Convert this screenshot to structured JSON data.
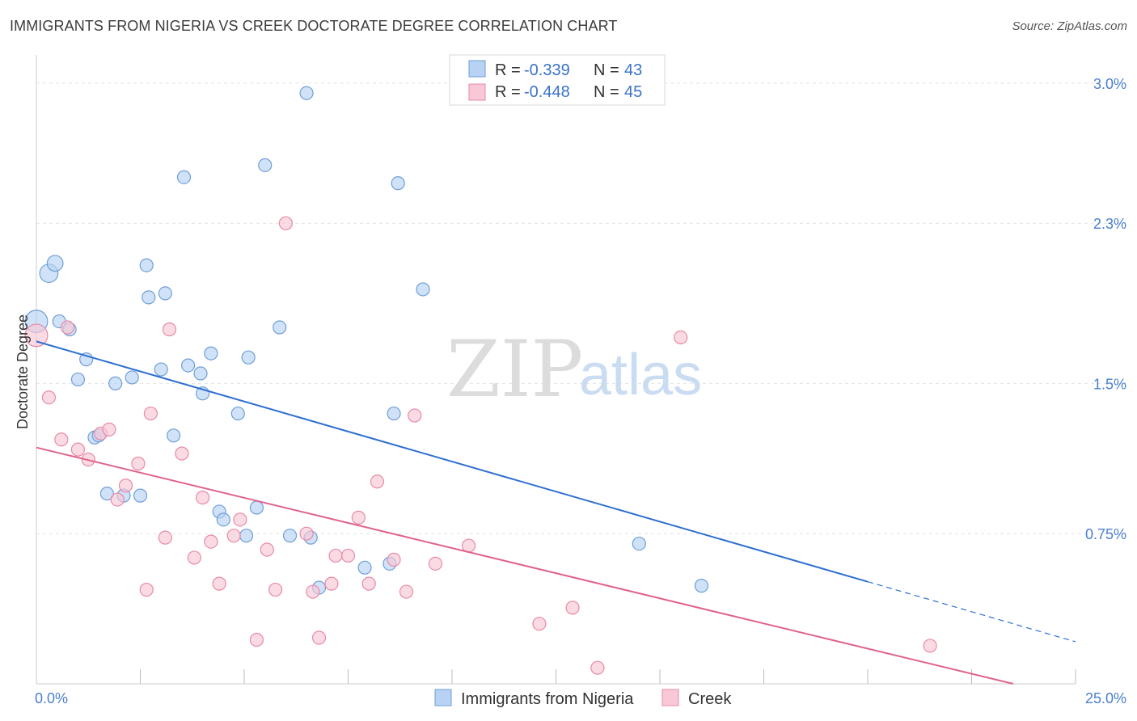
{
  "title": "IMMIGRANTS FROM NIGERIA VS CREEK DOCTORATE DEGREE CORRELATION CHART",
  "source": "Source: ZipAtlas.com",
  "watermark": {
    "part1": "ZIP",
    "part2": "atlas"
  },
  "colors": {
    "nigeria_fill": "#b7d2f3",
    "nigeria_stroke": "#6f9fd8",
    "nigeria_line": "#2e6fd1",
    "creek_fill": "#f8c8d6",
    "creek_stroke": "#e88aa6",
    "creek_line": "#e0628e",
    "tick_text": "#4a7fd0"
  },
  "legend": {
    "rows": [
      {
        "r_label": "R =",
        "r_value": "-0.339",
        "n_label": "N =",
        "n_value": "43"
      },
      {
        "r_label": "R =",
        "r_value": "-0.448",
        "n_label": "N =",
        "n_value": "45"
      }
    ]
  },
  "chart_data": {
    "type": "scatter",
    "title": "IMMIGRANTS FROM NIGERIA VS CREEK DOCTORATE DEGREE CORRELATION CHART",
    "xlabel": "",
    "ylabel": "Doctorate Degree",
    "xlim": [
      0,
      25
    ],
    "ylim": [
      0,
      3.1
    ],
    "x_tick_labels": [
      "0.0%",
      "25.0%"
    ],
    "y_ticks": [
      0.75,
      1.5,
      2.3,
      3.0
    ],
    "y_tick_labels": [
      "0.75%",
      "1.5%",
      "2.3%",
      "3.0%"
    ],
    "grid": true,
    "legend_position": "top-center",
    "series": [
      {
        "name": "Immigrants from Nigeria",
        "points": [
          [
            0.0,
            1.81,
            3
          ],
          [
            0.3,
            2.05,
            2
          ],
          [
            0.45,
            2.1,
            1.5
          ],
          [
            0.55,
            1.81,
            1
          ],
          [
            0.8,
            1.77,
            1
          ],
          [
            1.0,
            1.52,
            1
          ],
          [
            1.2,
            1.62,
            1
          ],
          [
            1.4,
            1.23,
            1
          ],
          [
            1.5,
            1.24,
            1
          ],
          [
            1.7,
            0.95,
            1
          ],
          [
            1.9,
            1.5,
            1
          ],
          [
            2.1,
            0.94,
            1
          ],
          [
            2.5,
            0.94,
            1
          ],
          [
            2.3,
            1.53,
            1
          ],
          [
            2.65,
            2.09,
            1
          ],
          [
            2.7,
            1.93,
            1
          ],
          [
            3.0,
            1.57,
            1
          ],
          [
            3.1,
            1.95,
            1
          ],
          [
            3.3,
            1.24,
            1
          ],
          [
            3.55,
            2.53,
            1
          ],
          [
            3.65,
            1.59,
            1
          ],
          [
            3.95,
            1.55,
            1
          ],
          [
            4.0,
            1.45,
            1
          ],
          [
            4.2,
            1.65,
            1
          ],
          [
            4.4,
            0.86,
            1
          ],
          [
            4.5,
            0.82,
            1
          ],
          [
            4.85,
            1.35,
            1
          ],
          [
            5.05,
            0.74,
            1
          ],
          [
            5.1,
            1.63,
            1
          ],
          [
            5.3,
            0.88,
            1
          ],
          [
            5.5,
            2.59,
            1
          ],
          [
            5.85,
            1.78,
            1
          ],
          [
            6.1,
            0.74,
            1
          ],
          [
            6.5,
            2.95,
            1
          ],
          [
            6.6,
            0.73,
            1
          ],
          [
            6.8,
            0.48,
            1
          ],
          [
            7.9,
            0.58,
            1
          ],
          [
            8.5,
            0.6,
            1
          ],
          [
            8.6,
            1.35,
            1
          ],
          [
            8.7,
            2.5,
            1
          ],
          [
            9.3,
            1.97,
            1
          ],
          [
            14.5,
            0.7,
            1
          ],
          [
            16.0,
            0.49,
            1
          ]
        ]
      },
      {
        "name": "Creek",
        "points": [
          [
            0.0,
            1.74,
            3
          ],
          [
            0.3,
            1.43,
            1
          ],
          [
            0.6,
            1.22,
            1
          ],
          [
            0.75,
            1.78,
            1
          ],
          [
            1.0,
            1.17,
            1
          ],
          [
            1.25,
            1.12,
            1
          ],
          [
            1.55,
            1.25,
            1
          ],
          [
            1.75,
            1.27,
            1
          ],
          [
            1.95,
            0.92,
            1
          ],
          [
            2.15,
            0.99,
            1
          ],
          [
            2.45,
            1.1,
            1
          ],
          [
            2.65,
            0.47,
            1
          ],
          [
            2.75,
            1.35,
            1
          ],
          [
            3.1,
            0.73,
            1
          ],
          [
            3.2,
            1.77,
            1
          ],
          [
            3.5,
            1.15,
            1
          ],
          [
            3.8,
            0.63,
            1
          ],
          [
            4.0,
            0.93,
            1
          ],
          [
            4.2,
            0.71,
            1
          ],
          [
            4.4,
            0.5,
            1
          ],
          [
            4.75,
            0.74,
            1
          ],
          [
            4.9,
            0.82,
            1
          ],
          [
            5.3,
            0.22,
            1
          ],
          [
            5.55,
            0.67,
            1
          ],
          [
            5.75,
            0.47,
            1
          ],
          [
            6.0,
            2.3,
            1
          ],
          [
            6.5,
            0.75,
            1
          ],
          [
            6.65,
            0.46,
            1
          ],
          [
            6.8,
            0.23,
            1
          ],
          [
            7.1,
            0.5,
            1
          ],
          [
            7.2,
            0.64,
            1
          ],
          [
            7.5,
            0.64,
            1
          ],
          [
            7.75,
            0.83,
            1
          ],
          [
            8.0,
            0.5,
            1
          ],
          [
            8.2,
            1.01,
            1
          ],
          [
            8.6,
            0.62,
            1
          ],
          [
            8.9,
            0.46,
            1
          ],
          [
            9.1,
            1.34,
            1
          ],
          [
            9.6,
            0.6,
            1
          ],
          [
            10.4,
            0.69,
            1
          ],
          [
            12.1,
            0.3,
            1
          ],
          [
            12.9,
            0.38,
            1
          ],
          [
            13.5,
            0.08,
            1
          ],
          [
            15.5,
            1.73,
            1
          ],
          [
            21.5,
            0.19,
            1
          ]
        ]
      }
    ],
    "trend_lines": [
      {
        "series": "Immigrants from Nigeria",
        "x_start": 0,
        "y_start": 1.71,
        "x_solid_end": 20.0,
        "y_solid_end": 0.51,
        "x_end": 25.0,
        "y_end": 0.21
      },
      {
        "series": "Creek",
        "x_start": 0,
        "y_start": 1.18,
        "x_end": 23.5,
        "y_end": 0.0
      }
    ]
  }
}
